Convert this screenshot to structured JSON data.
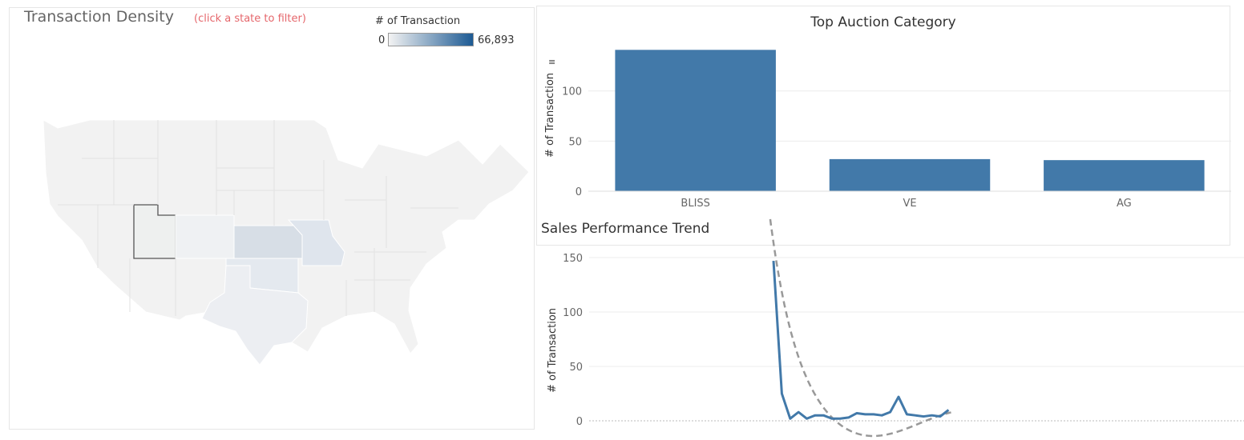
{
  "map": {
    "title": "Transaction Density",
    "hint": "(click a state to filter)",
    "legend": {
      "title": "# of Transaction",
      "min": "0",
      "max": "66,893",
      "color_low": "#f3f3f3",
      "color_high": "#1d5a93"
    },
    "selected_state": "Utah",
    "colors": {
      "kansas": "#d7dee6",
      "missouri": "#dfe5ed",
      "oklahoma": "#e4e9ef",
      "texas": "#eceef2",
      "base": "#f2f2f2"
    }
  },
  "bar_chart": {
    "title": "Top Auction Category"
  },
  "line_chart": {
    "title": "Sales Performance Trend"
  },
  "chart_data": [
    {
      "type": "bar",
      "title": "Top Auction Category",
      "categories": [
        "BLISS",
        "VE",
        "AG"
      ],
      "values": [
        141,
        32,
        31
      ],
      "ylabel": "# of Transaction",
      "yticks": [
        0,
        50,
        100
      ],
      "ylim": [
        0,
        150
      ],
      "color": "#4279a9",
      "grid": true
    },
    {
      "type": "line",
      "title": "Sales Performance Trend",
      "ylabel": "# of Transaction",
      "yticks": [
        0,
        50,
        100,
        150
      ],
      "ylim": [
        0,
        150
      ],
      "x": [
        0,
        1,
        2,
        3,
        4,
        5,
        6,
        7,
        8,
        9,
        10,
        11,
        12,
        13,
        14,
        15,
        16,
        17,
        18,
        19,
        20,
        21
      ],
      "series": [
        {
          "values": [
            147,
            25,
            2,
            8,
            2,
            5,
            5,
            2,
            2,
            3,
            7,
            6,
            6,
            5,
            8,
            22,
            6,
            5,
            4,
            5,
            4,
            10
          ],
          "color": "#4279a9"
        }
      ],
      "trend": {
        "color": "#999999",
        "style": "dashed"
      },
      "grid": true
    }
  ]
}
